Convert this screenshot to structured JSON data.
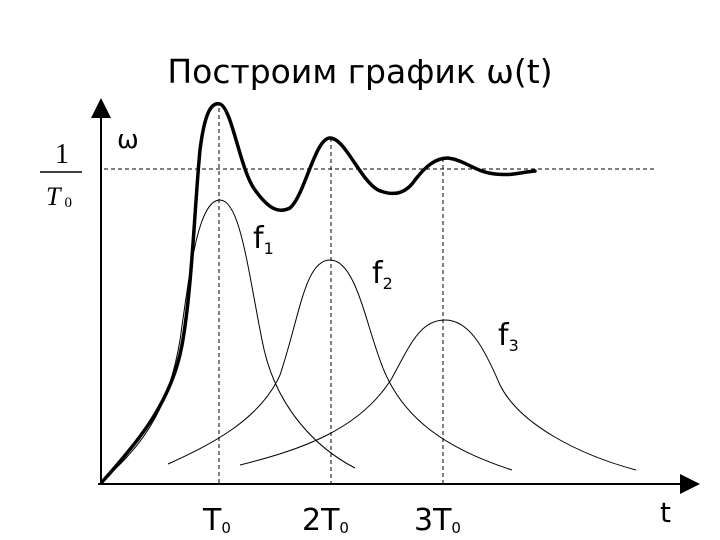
{
  "title": "Построим график ω(t)",
  "y_axis_label": "ω",
  "x_axis_label": "t",
  "level_fraction": {
    "numerator": "1",
    "denominator_base": "T",
    "denominator_sub": "0"
  },
  "ticks": [
    {
      "coef": "",
      "base": "T",
      "sub": "0"
    },
    {
      "coef": "2",
      "base": "T",
      "sub": "0"
    },
    {
      "coef": "3",
      "base": "T",
      "sub": "0"
    }
  ],
  "curves": [
    {
      "base": "f",
      "sub": "1"
    },
    {
      "base": "f",
      "sub": "2"
    },
    {
      "base": "f",
      "sub": "3"
    }
  ]
}
